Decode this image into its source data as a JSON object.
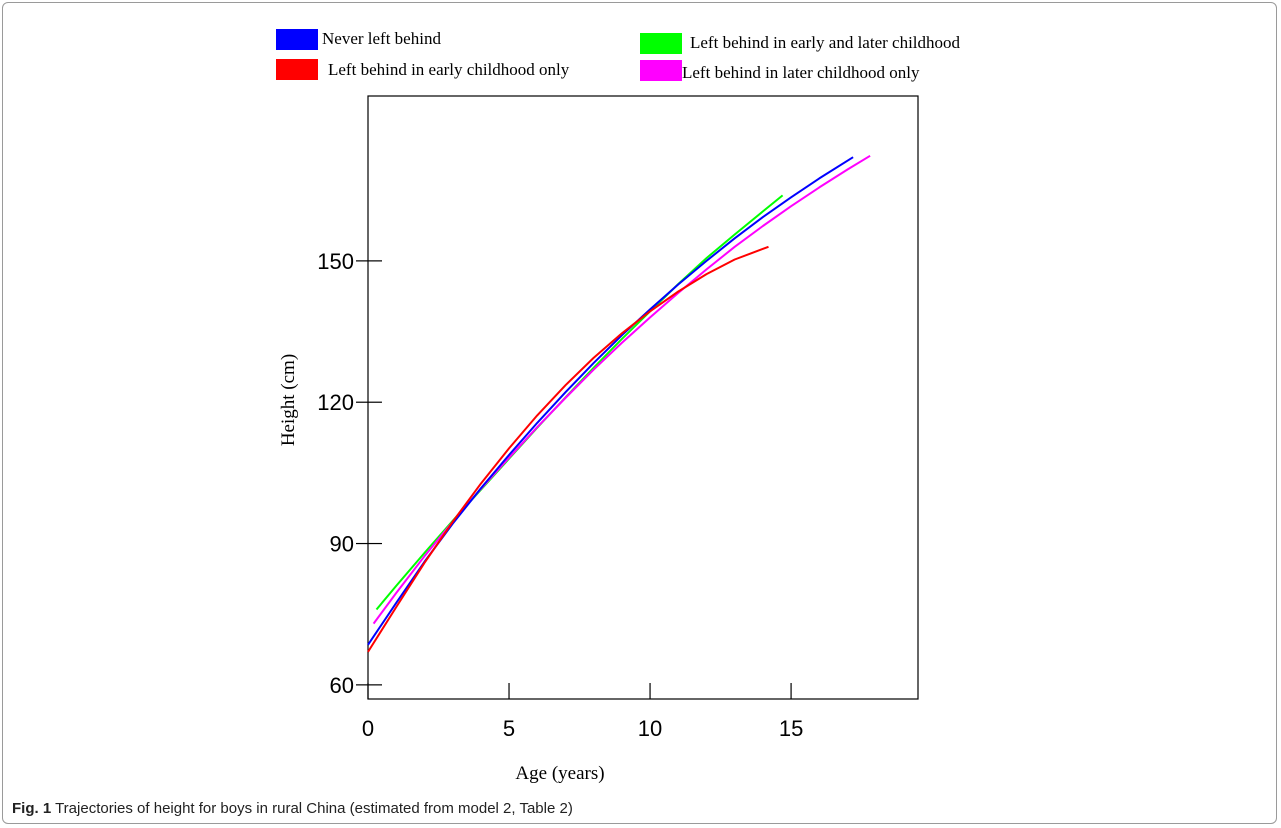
{
  "caption": {
    "label": "Fig. 1",
    "text": "Trajectories of height for boys in rural China (estimated from model 2, Table 2)"
  },
  "chart_data": {
    "type": "line",
    "title": "",
    "xlabel": "Age (years)",
    "ylabel": "Height (cm)",
    "xlim": [
      0,
      19.5
    ],
    "ylim": [
      57,
      185
    ],
    "xticks": [
      0,
      5,
      10,
      15
    ],
    "yticks": [
      60,
      90,
      120,
      150
    ],
    "grid": false,
    "legend_placement": "top",
    "series": [
      {
        "name": "Never left behind",
        "color": "#0000ff",
        "x": [
          0,
          1,
          2,
          3,
          4,
          5,
          6,
          7,
          8,
          9,
          10,
          11,
          12,
          13,
          14,
          15,
          16,
          17.2
        ],
        "y": [
          68.5,
          77.4,
          86.1,
          94.2,
          101.7,
          108.8,
          115.6,
          122.1,
          128.3,
          134.2,
          139.7,
          145.0,
          150.0,
          154.8,
          159.3,
          163.5,
          167.5,
          172.0
        ]
      },
      {
        "name": "Left behind in early childhood only",
        "color": "#ff0000",
        "x": [
          0,
          1,
          2,
          3,
          4,
          5,
          6,
          7,
          8,
          9,
          10,
          11,
          12,
          13,
          14.2
        ],
        "y": [
          67.0,
          76.5,
          85.9,
          94.6,
          102.7,
          110.2,
          117.2,
          123.6,
          129.4,
          134.6,
          139.3,
          143.5,
          147.2,
          150.3,
          153.0
        ]
      },
      {
        "name": "Left behind in early and later childhood",
        "color": "#00ff00",
        "x": [
          0.3,
          1,
          2,
          3,
          4,
          5,
          6,
          7,
          8,
          9,
          10,
          11,
          12,
          13,
          14,
          14.7
        ],
        "y": [
          76.0,
          81.0,
          88.0,
          94.8,
          101.4,
          108.0,
          114.6,
          121.0,
          127.3,
          133.4,
          139.3,
          145.1,
          150.6,
          155.6,
          160.5,
          163.9
        ]
      },
      {
        "name": "Left behind in later childhood only",
        "color": "#ff00ff",
        "x": [
          0.2,
          1,
          2,
          3,
          4,
          5,
          6,
          7,
          8,
          9,
          10,
          11,
          12,
          13,
          14,
          15,
          16,
          17,
          17.8
        ],
        "y": [
          73.0,
          79.5,
          87.3,
          94.6,
          101.6,
          108.2,
          114.7,
          120.9,
          126.9,
          132.6,
          138.0,
          143.2,
          148.2,
          153.0,
          157.4,
          161.6,
          165.6,
          169.4,
          172.3
        ]
      }
    ]
  }
}
